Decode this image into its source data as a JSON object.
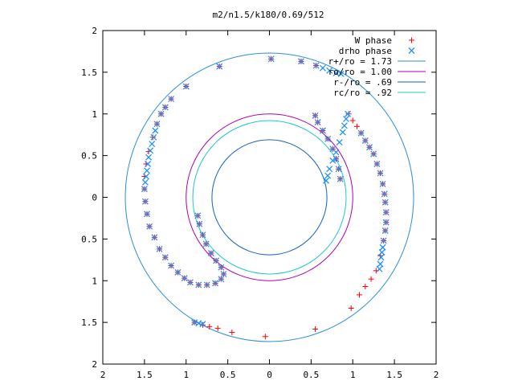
{
  "chart_data": {
    "type": "scatter",
    "title": "m2/n1.5/k180/0.69/512",
    "xlabel": "",
    "ylabel": "",
    "xlim": [
      -2,
      2
    ],
    "ylim": [
      -2,
      2
    ],
    "grid": false,
    "legend_position": "top-right",
    "x_tick_labels": [
      "2",
      "1.5",
      "1",
      "0.5",
      "0",
      "0.5",
      "1",
      "1.5",
      "2"
    ],
    "x_tick_values": [
      -2,
      -1.5,
      -1,
      -0.5,
      0,
      0.5,
      1,
      1.5,
      2
    ],
    "y_tick_labels": [
      "2",
      "1.5",
      "1",
      "0.5",
      "0",
      "0.5",
      "1",
      "1.5",
      "2"
    ],
    "y_tick_values": [
      2,
      1.5,
      1,
      0.5,
      0,
      -0.5,
      -1,
      -1.5,
      -2
    ],
    "series": [
      {
        "name": "W phase",
        "marker": "plus",
        "color": "#ff0000",
        "points": [
          [
            0.02,
            1.66
          ],
          [
            0.38,
            1.63
          ],
          [
            0.56,
            1.58
          ],
          [
            0.95,
            1.0
          ],
          [
            1.0,
            0.92
          ],
          [
            1.05,
            0.85
          ],
          [
            1.1,
            0.77
          ],
          [
            1.15,
            0.68
          ],
          [
            1.2,
            0.6
          ],
          [
            1.25,
            0.52
          ],
          [
            1.29,
            0.4
          ],
          [
            1.33,
            0.29
          ],
          [
            1.36,
            0.16
          ],
          [
            1.38,
            0.04
          ],
          [
            1.39,
            -0.06
          ],
          [
            1.4,
            -0.18
          ],
          [
            1.4,
            -0.3
          ],
          [
            1.39,
            -0.4
          ],
          [
            1.37,
            -0.52
          ],
          [
            1.33,
            -0.7
          ],
          [
            1.28,
            -0.88
          ],
          [
            1.22,
            -0.98
          ],
          [
            1.15,
            -1.07
          ],
          [
            1.08,
            -1.17
          ],
          [
            0.98,
            -1.33
          ],
          [
            0.55,
            -1.58
          ],
          [
            -0.05,
            -1.67
          ],
          [
            -0.45,
            -1.62
          ],
          [
            -0.62,
            -1.57
          ],
          [
            -0.72,
            -1.55
          ],
          [
            -0.8,
            -1.53
          ],
          [
            -0.9,
            -1.5
          ],
          [
            -0.6,
            1.57
          ],
          [
            -1.0,
            1.33
          ],
          [
            -1.18,
            1.18
          ],
          [
            -1.25,
            1.08
          ],
          [
            -1.3,
            1.0
          ],
          [
            -1.35,
            0.88
          ],
          [
            -1.4,
            0.72
          ],
          [
            -1.45,
            0.55
          ],
          [
            -1.48,
            0.4
          ],
          [
            -1.5,
            0.25
          ],
          [
            -1.5,
            0.1
          ],
          [
            -1.49,
            -0.05
          ],
          [
            -1.47,
            -0.2
          ],
          [
            -1.44,
            -0.35
          ],
          [
            -1.38,
            -0.48
          ],
          [
            -1.32,
            -0.62
          ],
          [
            -1.25,
            -0.72
          ],
          [
            -1.18,
            -0.82
          ],
          [
            -1.1,
            -0.9
          ],
          [
            -1.02,
            -0.97
          ],
          [
            -0.95,
            -1.02
          ],
          [
            -0.85,
            -1.05
          ],
          [
            -0.75,
            -1.05
          ],
          [
            -0.65,
            -1.03
          ],
          [
            -0.58,
            -0.98
          ],
          [
            -0.55,
            -0.92
          ],
          [
            -0.58,
            -0.84
          ],
          [
            -0.64,
            -0.76
          ],
          [
            -0.7,
            -0.67
          ],
          [
            -0.76,
            -0.56
          ],
          [
            -0.8,
            -0.45
          ],
          [
            -0.84,
            -0.32
          ],
          [
            -0.86,
            -0.22
          ],
          [
            0.55,
            0.98
          ],
          [
            0.58,
            0.9
          ],
          [
            0.64,
            0.8
          ],
          [
            0.7,
            0.7
          ],
          [
            0.76,
            0.58
          ],
          [
            0.8,
            0.46
          ],
          [
            0.83,
            0.34
          ],
          [
            0.85,
            0.22
          ]
        ]
      },
      {
        "name": "drho phase",
        "marker": "cross",
        "color": "#1e90ff",
        "points": [
          [
            0.02,
            1.66
          ],
          [
            0.38,
            1.63
          ],
          [
            0.56,
            1.58
          ],
          [
            0.64,
            1.55
          ],
          [
            0.72,
            1.52
          ],
          [
            0.8,
            1.49
          ],
          [
            0.86,
            1.48
          ],
          [
            1.1,
            0.77
          ],
          [
            1.15,
            0.68
          ],
          [
            1.2,
            0.6
          ],
          [
            1.25,
            0.52
          ],
          [
            1.29,
            0.4
          ],
          [
            1.33,
            0.29
          ],
          [
            1.36,
            0.16
          ],
          [
            1.38,
            0.04
          ],
          [
            1.39,
            -0.06
          ],
          [
            1.4,
            -0.18
          ],
          [
            1.4,
            -0.3
          ],
          [
            1.39,
            -0.4
          ],
          [
            1.37,
            -0.52
          ],
          [
            1.36,
            -0.6
          ],
          [
            1.35,
            -0.66
          ],
          [
            1.34,
            -0.72
          ],
          [
            1.33,
            -0.8
          ],
          [
            1.32,
            -0.86
          ],
          [
            -0.6,
            1.57
          ],
          [
            -1.0,
            1.33
          ],
          [
            -1.18,
            1.18
          ],
          [
            -1.25,
            1.08
          ],
          [
            -1.3,
            1.0
          ],
          [
            -1.35,
            0.88
          ],
          [
            -1.37,
            0.8
          ],
          [
            -1.39,
            0.72
          ],
          [
            -1.41,
            0.64
          ],
          [
            -1.43,
            0.56
          ],
          [
            -1.45,
            0.48
          ],
          [
            -1.46,
            0.4
          ],
          [
            -1.47,
            0.32
          ],
          [
            -1.48,
            0.25
          ],
          [
            -1.49,
            0.18
          ],
          [
            -1.5,
            0.1
          ],
          [
            -1.49,
            -0.05
          ],
          [
            -1.47,
            -0.2
          ],
          [
            -1.44,
            -0.35
          ],
          [
            -1.38,
            -0.48
          ],
          [
            -1.32,
            -0.62
          ],
          [
            -1.25,
            -0.72
          ],
          [
            -1.18,
            -0.82
          ],
          [
            -1.1,
            -0.9
          ],
          [
            -1.02,
            -0.97
          ],
          [
            -0.95,
            -1.02
          ],
          [
            -0.85,
            -1.05
          ],
          [
            -0.75,
            -1.05
          ],
          [
            -0.65,
            -1.03
          ],
          [
            -0.58,
            -0.98
          ],
          [
            -0.55,
            -0.92
          ],
          [
            -0.58,
            -0.84
          ],
          [
            -0.64,
            -0.76
          ],
          [
            -0.7,
            -0.67
          ],
          [
            -0.76,
            -0.56
          ],
          [
            -0.8,
            -0.45
          ],
          [
            -0.84,
            -0.32
          ],
          [
            -0.86,
            -0.22
          ],
          [
            -0.9,
            -1.5
          ],
          [
            -0.85,
            -1.51
          ],
          [
            -0.8,
            -1.52
          ],
          [
            0.55,
            0.98
          ],
          [
            0.58,
            0.9
          ],
          [
            0.64,
            0.8
          ],
          [
            0.7,
            0.7
          ],
          [
            0.76,
            0.58
          ],
          [
            0.8,
            0.46
          ],
          [
            0.83,
            0.34
          ],
          [
            0.85,
            0.22
          ],
          [
            0.68,
            0.2
          ],
          [
            0.7,
            0.26
          ],
          [
            0.72,
            0.34
          ],
          [
            0.76,
            0.44
          ],
          [
            0.8,
            0.54
          ],
          [
            0.84,
            0.66
          ],
          [
            0.88,
            0.78
          ],
          [
            0.9,
            0.86
          ],
          [
            0.92,
            0.94
          ],
          [
            0.94,
            1.0
          ]
        ]
      }
    ],
    "curves": [
      {
        "name": "r+/ro = 1.73",
        "type": "circle",
        "radius": 1.73,
        "color": "#2a8fd8"
      },
      {
        "name": "ro/ro = 1.00",
        "type": "circle",
        "radius": 1.0,
        "color": "#b000b0"
      },
      {
        "name": "r-/ro = .69",
        "type": "circle",
        "radius": 0.69,
        "color": "#1060c0"
      },
      {
        "name": "rc/ro = .92",
        "type": "circle",
        "radius": 0.92,
        "color": "#20c8c8"
      }
    ]
  }
}
